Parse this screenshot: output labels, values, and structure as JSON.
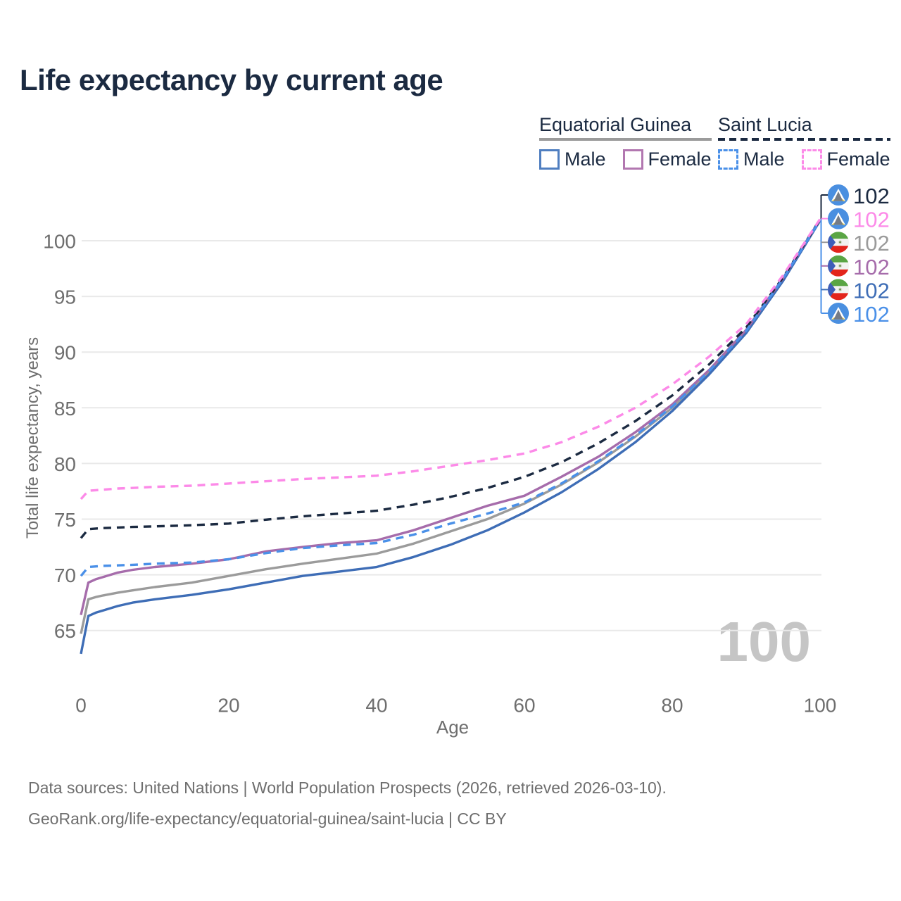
{
  "title": "Life expectancy by current age",
  "legend": {
    "groups": [
      {
        "name": "Equatorial Guinea",
        "line_style": "solid",
        "line_color": "#9b9b9b",
        "items": [
          {
            "label": "Male",
            "style": "solid",
            "color": "#4f7ec0"
          },
          {
            "label": "Female",
            "style": "solid",
            "color": "#b277b0"
          }
        ]
      },
      {
        "name": "Saint Lucia",
        "line_style": "dashed",
        "line_color": "#1b2a41",
        "items": [
          {
            "label": "Male",
            "style": "dashed",
            "color": "#4a90e8"
          },
          {
            "label": "Female",
            "style": "dashed",
            "color": "#fc8ae8"
          }
        ]
      }
    ]
  },
  "chart_data": {
    "type": "line",
    "title": "Life expectancy by current age",
    "xlabel": "Age",
    "ylabel": "Total life expectancy, years",
    "xlim": [
      0,
      100
    ],
    "ylim": [
      62,
      103
    ],
    "xticks": [
      0,
      20,
      40,
      60,
      80,
      100
    ],
    "yticks": [
      65,
      70,
      75,
      80,
      85,
      90,
      95,
      100
    ],
    "grid": "horizontal",
    "legend_position": "top-right",
    "x": [
      0,
      1,
      2,
      3,
      5,
      7,
      10,
      15,
      20,
      25,
      30,
      35,
      40,
      45,
      50,
      55,
      60,
      65,
      70,
      75,
      80,
      85,
      90,
      95,
      100
    ],
    "series": [
      {
        "name": "Equatorial Guinea",
        "sex": "total",
        "dash": "solid",
        "color": "#9b9b9b",
        "values": [
          64.7,
          67.8,
          68.0,
          68.15,
          68.4,
          68.6,
          68.9,
          69.3,
          69.9,
          70.5,
          71.0,
          71.45,
          71.9,
          72.8,
          73.9,
          75.0,
          76.4,
          78.1,
          80.1,
          82.4,
          85.0,
          88.2,
          91.85,
          96.55,
          101.85
        ]
      },
      {
        "name": "Equatorial Guinea Male",
        "sex": "male",
        "dash": "solid",
        "color": "#3e6db6",
        "values": [
          62.9,
          66.3,
          66.6,
          66.8,
          67.2,
          67.5,
          67.8,
          68.2,
          68.7,
          69.3,
          69.9,
          70.3,
          70.7,
          71.6,
          72.7,
          74.0,
          75.6,
          77.4,
          79.5,
          81.9,
          84.7,
          88.0,
          91.7,
          96.4,
          101.8
        ]
      },
      {
        "name": "Equatorial Guinea Female",
        "sex": "female",
        "dash": "solid",
        "color": "#a66cab",
        "values": [
          66.4,
          69.3,
          69.6,
          69.8,
          70.2,
          70.45,
          70.7,
          71.0,
          71.4,
          72.1,
          72.5,
          72.85,
          73.1,
          74.0,
          75.1,
          76.2,
          77.1,
          78.8,
          80.6,
          82.8,
          85.3,
          88.4,
          92.0,
          96.65,
          101.9
        ]
      },
      {
        "name": "Saint Lucia",
        "sex": "total",
        "dash": "dashed",
        "color": "#1b2a41",
        "values": [
          73.3,
          74.1,
          74.15,
          74.2,
          74.25,
          74.3,
          74.35,
          74.45,
          74.6,
          74.95,
          75.25,
          75.5,
          75.75,
          76.3,
          77.0,
          77.8,
          78.8,
          80.1,
          81.8,
          83.8,
          86.1,
          88.9,
          92.2,
          96.7,
          101.9
        ]
      },
      {
        "name": "Saint Lucia Male",
        "sex": "male",
        "dash": "dashed",
        "color": "#4a90e8",
        "values": [
          69.9,
          70.7,
          70.75,
          70.8,
          70.85,
          70.9,
          71.0,
          71.1,
          71.4,
          71.95,
          72.4,
          72.65,
          72.85,
          73.6,
          74.6,
          75.5,
          76.5,
          78.2,
          80.2,
          82.5,
          85.1,
          88.3,
          91.9,
          96.6,
          101.85
        ]
      },
      {
        "name": "Saint Lucia Female",
        "sex": "female",
        "dash": "dashed",
        "color": "#fc8ae8",
        "values": [
          76.8,
          77.55,
          77.6,
          77.65,
          77.75,
          77.8,
          77.9,
          78.0,
          78.2,
          78.4,
          78.6,
          78.75,
          78.9,
          79.3,
          79.8,
          80.3,
          80.9,
          81.9,
          83.3,
          85.0,
          87.1,
          89.6,
          92.5,
          96.9,
          101.95
        ]
      }
    ],
    "end_labels": [
      {
        "series": "Saint Lucia",
        "flag": "saint-lucia",
        "value": "102",
        "color": "#1b2a41"
      },
      {
        "series": "Saint Lucia Female",
        "flag": "saint-lucia",
        "value": "102",
        "color": "#fc8ae8"
      },
      {
        "series": "Equatorial Guinea",
        "flag": "equatorial-guinea",
        "value": "102",
        "color": "#9b9b9b"
      },
      {
        "series": "Equatorial Guinea Female",
        "flag": "equatorial-guinea",
        "value": "102",
        "color": "#a66cab"
      },
      {
        "series": "Equatorial Guinea Male",
        "flag": "equatorial-guinea",
        "value": "102",
        "color": "#3e6db6"
      },
      {
        "series": "Saint Lucia Male",
        "flag": "saint-lucia",
        "value": "102",
        "color": "#4a90e8"
      }
    ]
  },
  "watermark": "100",
  "footer": {
    "line1": "Data sources: United Nations | World Population Prospects (2026, retrieved 2026-03-10).",
    "line2": "GeoRank.org/life-expectancy/equatorial-guinea/saint-lucia | CC BY"
  }
}
